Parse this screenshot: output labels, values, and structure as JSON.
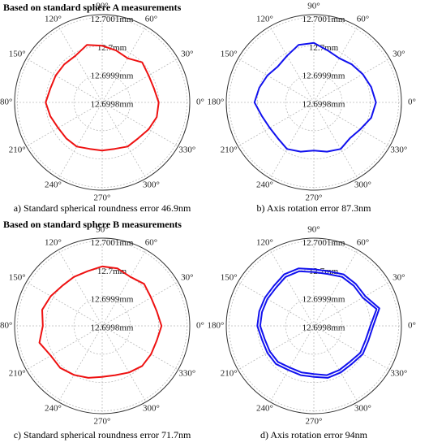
{
  "chart_data": [
    {
      "type": "polar",
      "title": "Based on standard sphere A measurements",
      "caption": "a) Standard spherical roundness error 46.9nm",
      "rlim": [
        12.6998,
        12.70011
      ],
      "rticks": [
        {
          "value": 12.6998,
          "label": "12.6998mm"
        },
        {
          "value": 12.6999,
          "label": "12.6999mm"
        },
        {
          "value": 12.7,
          "label": "12.7mm"
        },
        {
          "value": 12.7001,
          "label": "12.7001mm"
        }
      ],
      "thetaticks": [
        {
          "value": 0,
          "label": "0°"
        },
        {
          "value": 30,
          "label": "30°"
        },
        {
          "value": 60,
          "label": "60°"
        },
        {
          "value": 90,
          "label": "90°"
        },
        {
          "value": 120,
          "label": "120°"
        },
        {
          "value": 150,
          "label": "150°"
        },
        {
          "value": 180,
          "label": "180°"
        },
        {
          "value": 210,
          "label": "210°"
        },
        {
          "value": 240,
          "label": "240°"
        },
        {
          "value": 270,
          "label": "270°"
        },
        {
          "value": 300,
          "label": "300°"
        },
        {
          "value": 330,
          "label": "330°"
        }
      ],
      "theta": [
        0,
        15,
        30,
        45,
        60,
        75,
        90,
        105,
        120,
        135,
        150,
        165,
        180,
        195,
        210,
        225,
        240,
        255,
        270,
        285,
        300,
        315,
        330,
        345
      ],
      "series": [
        {
          "color": "#ee1111",
          "values": [
            12.7,
            12.69999,
            12.69999,
            12.7,
            12.69998,
            12.69999,
            12.7,
            12.70001,
            12.69999,
            12.69999,
            12.69999,
            12.69999,
            12.7,
            12.69999,
            12.69998,
            12.69998,
            12.69998,
            12.69997,
            12.69997,
            12.69997,
            12.69998,
            12.69998,
            12.69999,
            12.7
          ]
        }
      ]
    },
    {
      "type": "polar",
      "caption": "b) Axis rotation error 87.3nm",
      "rlim": [
        12.6998,
        12.70011
      ],
      "rticks": [
        {
          "value": 12.6998,
          "label": "12.6998mm"
        },
        {
          "value": 12.6999,
          "label": "12.6999mm"
        },
        {
          "value": 12.7,
          "label": "12.7mm"
        },
        {
          "value": 12.7001,
          "label": "12.7001mm"
        }
      ],
      "thetaticks": [
        {
          "value": 0,
          "label": "0°"
        },
        {
          "value": 30,
          "label": "30°"
        },
        {
          "value": 60,
          "label": "60°"
        },
        {
          "value": 90,
          "label": "90°"
        },
        {
          "value": 120,
          "label": "120°"
        },
        {
          "value": 150,
          "label": "150°"
        },
        {
          "value": 180,
          "label": "180°"
        },
        {
          "value": 210,
          "label": "210°"
        },
        {
          "value": 240,
          "label": "240°"
        },
        {
          "value": 270,
          "label": "270°"
        },
        {
          "value": 300,
          "label": "300°"
        },
        {
          "value": 330,
          "label": "330°"
        }
      ],
      "theta": [
        0,
        15,
        30,
        45,
        60,
        75,
        90,
        105,
        120,
        135,
        150,
        165,
        180,
        195,
        210,
        225,
        240,
        255,
        270,
        285,
        300,
        315,
        330,
        345
      ],
      "series": [
        {
          "color": "#1111ee",
          "values": [
            12.70002,
            12.70001,
            12.7,
            12.69999,
            12.69998,
            12.69999,
            12.70001,
            12.70001,
            12.69999,
            12.69998,
            12.69999,
            12.7,
            12.70001,
            12.69999,
            12.69998,
            12.69998,
            12.69999,
            12.69998,
            12.69997,
            12.69998,
            12.69999,
            12.69998,
            12.69999,
            12.70001
          ]
        }
      ]
    },
    {
      "type": "polar",
      "title": "Based on standard sphere B measurements",
      "caption": "c) Standard spherical roundness error 71.7nm",
      "rlim": [
        12.6998,
        12.70011
      ],
      "rticks": [
        {
          "value": 12.6998,
          "label": "12.6998mm"
        },
        {
          "value": 12.6999,
          "label": "12.6999mm"
        },
        {
          "value": 12.7,
          "label": "12.7mm"
        },
        {
          "value": 12.7001,
          "label": "12.7001mm"
        }
      ],
      "thetaticks": [
        {
          "value": 0,
          "label": "0°"
        },
        {
          "value": 30,
          "label": "30°"
        },
        {
          "value": 60,
          "label": "60°"
        },
        {
          "value": 90,
          "label": "90°"
        },
        {
          "value": 120,
          "label": "120°"
        },
        {
          "value": 150,
          "label": "150°"
        },
        {
          "value": 180,
          "label": "180°"
        },
        {
          "value": 210,
          "label": "210°"
        },
        {
          "value": 240,
          "label": "240°"
        },
        {
          "value": 270,
          "label": "270°"
        },
        {
          "value": 300,
          "label": "300°"
        },
        {
          "value": 330,
          "label": "330°"
        }
      ],
      "theta": [
        0,
        15,
        30,
        45,
        60,
        75,
        90,
        105,
        120,
        135,
        150,
        165,
        180,
        195,
        210,
        225,
        240,
        255,
        270,
        285,
        300,
        315,
        330,
        345
      ],
      "series": [
        {
          "color": "#ee1111",
          "values": [
            12.70001,
            12.7,
            12.7,
            12.70001,
            12.7,
            12.70001,
            12.70001,
            12.7,
            12.7,
            12.7,
            12.70001,
            12.70002,
            12.70001,
            12.70003,
            12.70001,
            12.70001,
            12.7,
            12.69999,
            12.69998,
            12.69998,
            12.69999,
            12.7,
            12.7,
            12.7
          ]
        }
      ]
    },
    {
      "type": "polar",
      "caption": "d) Axis rotation error 94nm",
      "rlim": [
        12.6998,
        12.70011
      ],
      "rticks": [
        {
          "value": 12.6998,
          "label": "12.6998mm"
        },
        {
          "value": 12.6999,
          "label": "12.6999mm"
        },
        {
          "value": 12.7,
          "label": "12.7mm"
        },
        {
          "value": 12.7001,
          "label": "12.7001mm"
        }
      ],
      "thetaticks": [
        {
          "value": 0,
          "label": "0°"
        },
        {
          "value": 30,
          "label": "30°"
        },
        {
          "value": 60,
          "label": "60°"
        },
        {
          "value": 90,
          "label": "90°"
        },
        {
          "value": 120,
          "label": "120°"
        },
        {
          "value": 150,
          "label": "150°"
        },
        {
          "value": 180,
          "label": "180°"
        },
        {
          "value": 210,
          "label": "210°"
        },
        {
          "value": 240,
          "label": "240°"
        },
        {
          "value": 270,
          "label": "270°"
        },
        {
          "value": 300,
          "label": "300°"
        },
        {
          "value": 330,
          "label": "330°"
        }
      ],
      "theta": [
        0,
        15,
        30,
        45,
        60,
        75,
        90,
        105,
        120,
        135,
        150,
        165,
        180,
        195,
        210,
        225,
        240,
        255,
        270,
        285,
        300,
        315,
        330,
        345
      ],
      "series": [
        {
          "color": "#1111ee",
          "values": [
            12.70001,
            12.70004,
            12.70001,
            12.70001,
            12.70001,
            12.7,
            12.7,
            12.70001,
            12.70001,
            12.7,
            12.7,
            12.7,
            12.7,
            12.69999,
            12.69999,
            12.69999,
            12.69998,
            12.69998,
            12.69998,
            12.69999,
            12.69999,
            12.69999,
            12.7,
            12.7
          ]
        },
        {
          "color": "#1111ee",
          "values": [
            12.7,
            12.70003,
            12.7,
            12.7,
            12.7,
            12.69999,
            12.69999,
            12.7,
            12.7,
            12.69999,
            12.69999,
            12.69999,
            12.69999,
            12.69998,
            12.69998,
            12.69998,
            12.69997,
            12.69997,
            12.69997,
            12.69998,
            12.69998,
            12.69998,
            12.69999,
            12.69999
          ]
        }
      ]
    }
  ]
}
